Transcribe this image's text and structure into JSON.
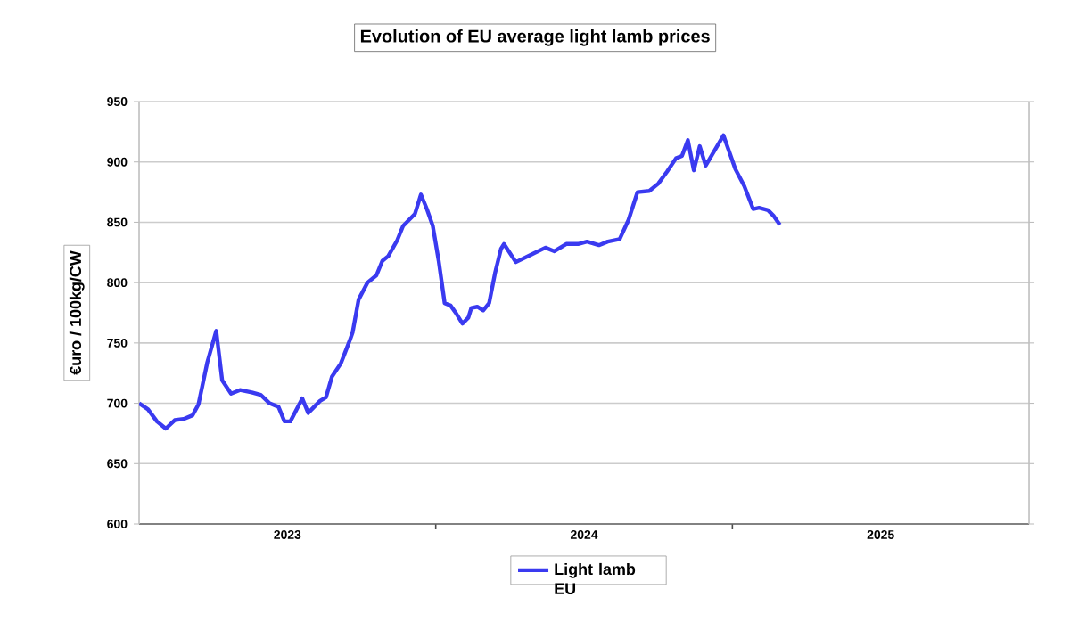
{
  "chart_data": {
    "type": "line",
    "title": "Evolution of EU average light lamb prices",
    "ylabel": "€uro / 100kg/CW",
    "xlim": [
      2023,
      2026
    ],
    "ylim": [
      600,
      950
    ],
    "xticks": [
      {
        "value": 2023.5,
        "label": "2023"
      },
      {
        "value": 2024,
        "label": null
      },
      {
        "value": 2024.5,
        "label": "2024"
      },
      {
        "value": 2025,
        "label": null
      },
      {
        "value": 2025.5,
        "label": "2025"
      }
    ],
    "yticks": [
      600,
      650,
      700,
      750,
      800,
      850,
      900,
      950
    ],
    "grid": "y",
    "legend": "bottom",
    "marker": "none",
    "line_style": "solid",
    "series": [
      {
        "name": "Light lamb EU",
        "color": "#3a3af0",
        "x": [
          2023.0,
          2023.03,
          2023.06,
          2023.09,
          2023.12,
          2023.15,
          2023.18,
          2023.2,
          2023.23,
          2023.26,
          2023.28,
          2023.31,
          2023.34,
          2023.38,
          2023.41,
          2023.44,
          2023.47,
          2023.49,
          2023.51,
          2023.55,
          2023.57,
          2023.61,
          2023.63,
          2023.65,
          2023.68,
          2023.71,
          2023.72,
          2023.74,
          2023.77,
          2023.8,
          2023.82,
          2023.84,
          2023.87,
          2023.89,
          2023.91,
          2023.93,
          2023.95,
          2023.97,
          2023.99,
          2024.01,
          2024.03,
          2024.05,
          2024.07,
          2024.09,
          2024.11,
          2024.12,
          2024.14,
          2024.16,
          2024.18,
          2024.2,
          2024.22,
          2024.23,
          2024.27,
          2024.32,
          2024.37,
          2024.4,
          2024.44,
          2024.48,
          2024.51,
          2024.55,
          2024.58,
          2024.62,
          2024.65,
          2024.68,
          2024.72,
          2024.75,
          2024.78,
          2024.81,
          2024.83,
          2024.85,
          2024.87,
          2024.89,
          2024.91,
          2024.97,
          2025.01,
          2025.04,
          2025.07,
          2025.09,
          2025.12,
          2025.14,
          2025.16
        ],
        "values": [
          700,
          695,
          685,
          679,
          686,
          687,
          690,
          699,
          734,
          760,
          719,
          708,
          711,
          709,
          707,
          700,
          697,
          685,
          685,
          704,
          692,
          702,
          705,
          722,
          733,
          752,
          759,
          786,
          800,
          806,
          818,
          822,
          835,
          847,
          852,
          857,
          873,
          861,
          847,
          818,
          783,
          781,
          774,
          766,
          771,
          779,
          780,
          777,
          783,
          808,
          828,
          832,
          817,
          823,
          829,
          826,
          832,
          832,
          834,
          831,
          834,
          836,
          852,
          875,
          876,
          882,
          892,
          903,
          905,
          918,
          893,
          913,
          897,
          922,
          894,
          880,
          861,
          862,
          860,
          855,
          848
        ]
      }
    ]
  }
}
